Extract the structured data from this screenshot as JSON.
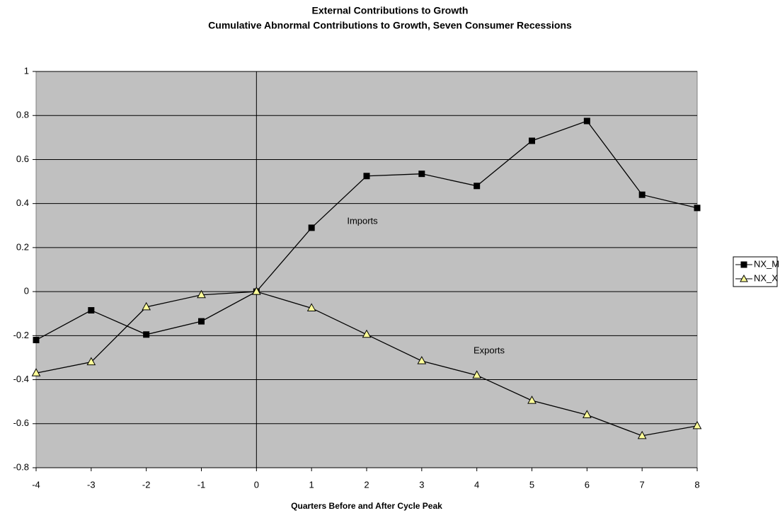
{
  "chart_data": {
    "type": "line",
    "title": "External Contributions to Growth",
    "subtitle": "Cumulative Abnormal Contributions to Growth, Seven Consumer Recessions",
    "x_label": "Quarters Before and After Cycle Peak",
    "x": [
      -4,
      -3,
      -2,
      -1,
      0,
      1,
      2,
      3,
      4,
      5,
      6,
      7,
      8
    ],
    "series": [
      {
        "name": "NX_M",
        "color": "#000000",
        "marker": "square",
        "values": [
          -0.22,
          -0.085,
          -0.195,
          -0.135,
          0,
          0.29,
          0.525,
          0.535,
          0.48,
          0.685,
          0.775,
          0.44,
          0.38
        ]
      },
      {
        "name": "NX_X",
        "color": "#ffff99",
        "marker": "triangle",
        "values": [
          -0.37,
          -0.32,
          -0.07,
          -0.015,
          0,
          -0.075,
          -0.195,
          -0.315,
          -0.38,
          -0.495,
          -0.56,
          -0.655,
          -0.61
        ]
      }
    ],
    "annotations": [
      "Imports",
      "Exports"
    ],
    "xlim": [
      -4,
      8
    ],
    "xticks": [
      -4,
      -3,
      -2,
      -1,
      0,
      1,
      2,
      3,
      4,
      5,
      6,
      7,
      8
    ],
    "ylim": [
      -0.8,
      1
    ],
    "yticks": [
      -0.8,
      -0.6,
      -0.4,
      -0.2,
      0,
      0.2,
      0.4,
      0.6,
      0.8,
      1
    ],
    "grid": true,
    "legend": "right"
  }
}
